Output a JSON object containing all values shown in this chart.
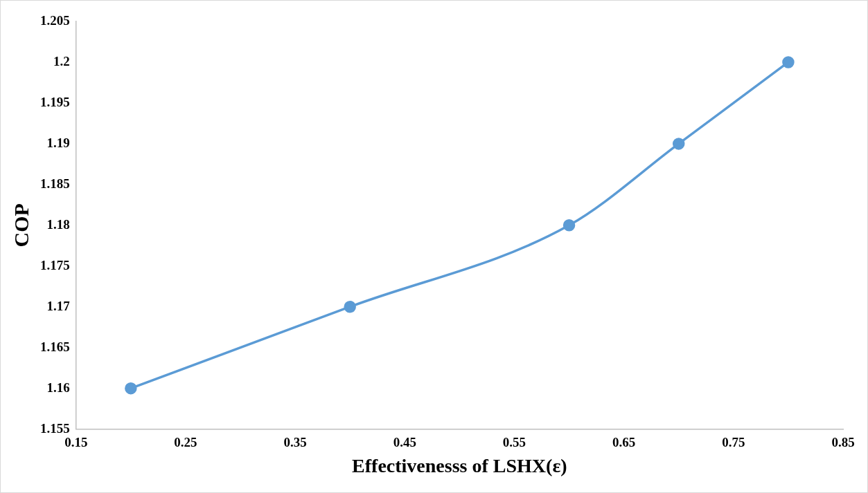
{
  "chart_data": {
    "type": "line",
    "xlabel": "Effectivenesss of LSHX(ε)",
    "ylabel": "COP",
    "x": [
      0.2,
      0.4,
      0.6,
      0.7,
      0.8
    ],
    "series": [
      {
        "color": "#5b9bd5",
        "values": [
          1.16,
          1.17,
          1.18,
          1.19,
          1.2
        ]
      }
    ],
    "xlim": [
      0.15,
      0.85
    ],
    "xticks": [
      0.15,
      0.25,
      0.35,
      0.45,
      0.55,
      0.65,
      0.75,
      0.85
    ],
    "ylim": [
      1.155,
      1.205
    ],
    "yticks": [
      1.155,
      1.16,
      1.165,
      1.17,
      1.175,
      1.18,
      1.185,
      1.19,
      1.195,
      1.2,
      1.205
    ],
    "grid": false,
    "legend": false,
    "marker": "circle",
    "line_style": "solid"
  }
}
